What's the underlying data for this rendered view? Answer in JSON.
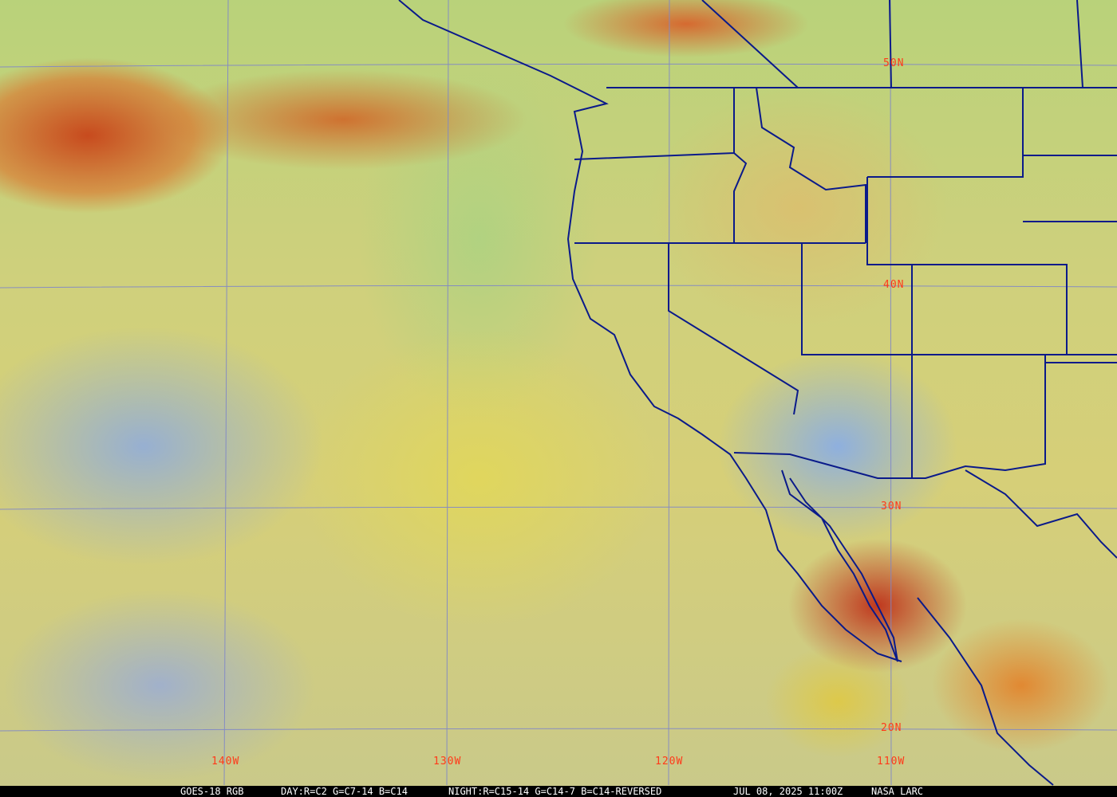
{
  "map": {
    "latitude_labels": [
      "50N",
      "40N",
      "30N",
      "20N"
    ],
    "longitude_labels": [
      "140W",
      "130W",
      "120W",
      "110W"
    ],
    "colors": {
      "grid": "#7f86c8",
      "borders": "#0a1a8a",
      "labels": "#ff3a1a",
      "caption_bg": "#000000",
      "caption_text": "#ffffff"
    }
  },
  "caption": {
    "satellite": "GOES-18 RGB",
    "day_recipe": "DAY:R=C2 G=C7-14 B=C14",
    "night_recipe": "NIGHT:R=C15-14 G=C14-7 B=C14-REVERSED",
    "timestamp": "JUL 08, 2025 11:00Z",
    "source": "NASA LARC"
  }
}
